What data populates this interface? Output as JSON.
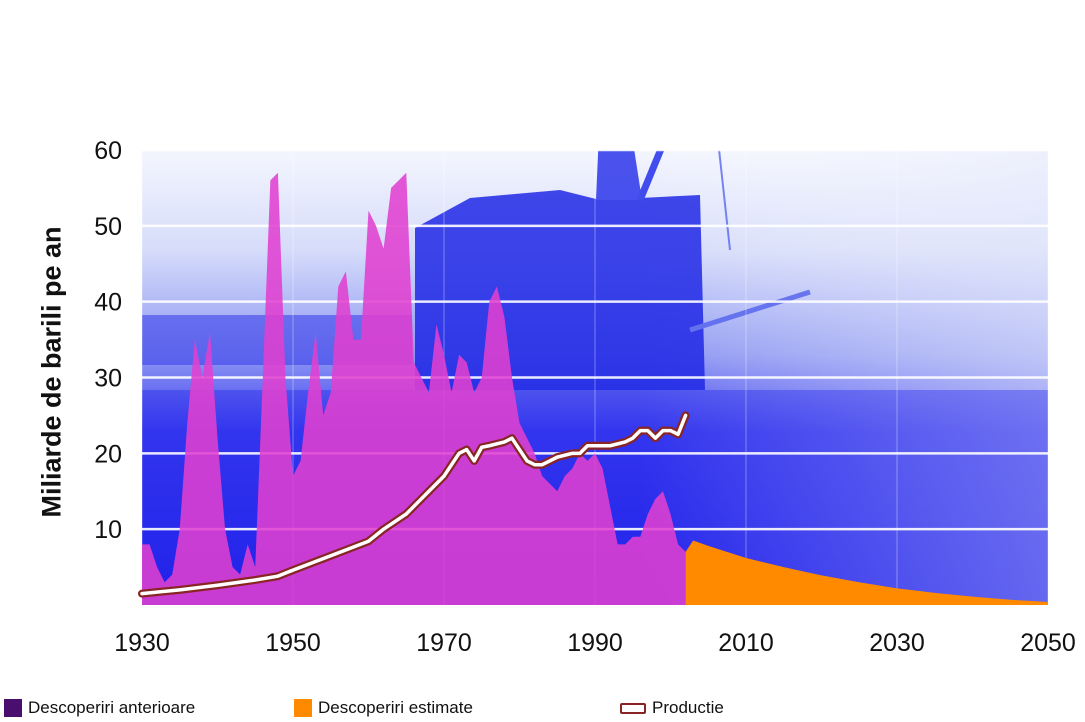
{
  "chart_data": {
    "type": "area",
    "title": "",
    "xlabel": "",
    "ylabel": "Miliarde de barili pe an",
    "xlim": [
      1930,
      2050
    ],
    "ylim": [
      0,
      60
    ],
    "x_ticks": [
      "1930",
      "1950",
      "1970",
      "1990",
      "2010",
      "2030",
      "2050"
    ],
    "y_ticks": [
      "10",
      "20",
      "30",
      "40",
      "50",
      "60"
    ],
    "grid": true,
    "legend_position": "bottom",
    "series": [
      {
        "name": "Descoperiri anterioare",
        "kind": "area",
        "color": "#e040d0",
        "x": [
          1930,
          1931,
          1932,
          1933,
          1934,
          1935,
          1936,
          1937,
          1938,
          1939,
          1940,
          1941,
          1942,
          1943,
          1944,
          1945,
          1946,
          1947,
          1948,
          1949,
          1950,
          1951,
          1952,
          1953,
          1954,
          1955,
          1956,
          1957,
          1958,
          1959,
          1960,
          1961,
          1962,
          1963,
          1964,
          1965,
          1966,
          1967,
          1968,
          1969,
          1970,
          1971,
          1972,
          1973,
          1974,
          1975,
          1976,
          1977,
          1978,
          1979,
          1980,
          1981,
          1982,
          1983,
          1984,
          1985,
          1986,
          1987,
          1988,
          1989,
          1990,
          1991,
          1992,
          1993,
          1994,
          1995,
          1996,
          1997,
          1998,
          1999,
          2000,
          2001,
          2002
        ],
        "values": [
          8,
          8,
          5,
          3,
          4,
          10,
          24,
          35,
          30,
          36,
          22,
          10,
          5,
          4,
          8,
          5,
          30,
          56,
          57,
          30,
          17,
          19,
          28,
          36,
          25,
          28,
          42,
          44,
          35,
          35,
          52,
          50,
          47,
          55,
          56,
          57,
          32,
          30,
          28,
          37,
          33,
          28,
          33,
          32,
          28,
          30,
          40,
          42,
          38,
          30,
          24,
          22,
          20,
          17,
          16,
          15,
          17,
          18,
          20,
          19,
          20,
          18,
          13,
          8,
          8,
          9,
          9,
          12,
          14,
          15,
          12,
          8,
          7
        ]
      },
      {
        "name": "Descoperiri estimate",
        "kind": "area",
        "color": "#ff8a00",
        "x": [
          2002,
          2003,
          2005,
          2010,
          2015,
          2020,
          2025,
          2030,
          2035,
          2040,
          2045,
          2050
        ],
        "values": [
          7,
          8.5,
          7.8,
          6.2,
          5,
          3.9,
          3,
          2.2,
          1.6,
          1.1,
          0.7,
          0.4
        ]
      },
      {
        "name": "Productie",
        "kind": "line",
        "color": "#8a2525",
        "x": [
          1930,
          1935,
          1940,
          1945,
          1948,
          1950,
          1955,
          1960,
          1962,
          1965,
          1968,
          1970,
          1972,
          1973,
          1974,
          1975,
          1976,
          1978,
          1979,
          1980,
          1981,
          1982,
          1983,
          1984,
          1985,
          1987,
          1988,
          1989,
          1990,
          1992,
          1994,
          1995,
          1996,
          1997,
          1998,
          1999,
          2000,
          2001,
          2002
        ],
        "values": [
          1.5,
          2,
          2.6,
          3.3,
          3.8,
          4.6,
          6.5,
          8.4,
          10,
          12,
          15,
          17,
          20,
          20.5,
          19,
          20.8,
          21,
          21.5,
          22,
          20.5,
          19,
          18.5,
          18.5,
          19,
          19.5,
          20,
          20,
          21,
          21,
          21,
          21.5,
          22,
          23,
          23,
          22,
          23,
          23,
          22.5,
          25
        ]
      }
    ]
  },
  "legend": {
    "items": [
      {
        "label": "Descoperiri anterioare",
        "color": "#4a0e6e"
      },
      {
        "label": "Descoperiri estimate",
        "color": "#ff8a00"
      },
      {
        "label": "Productie",
        "color": "#8a2525"
      }
    ]
  }
}
